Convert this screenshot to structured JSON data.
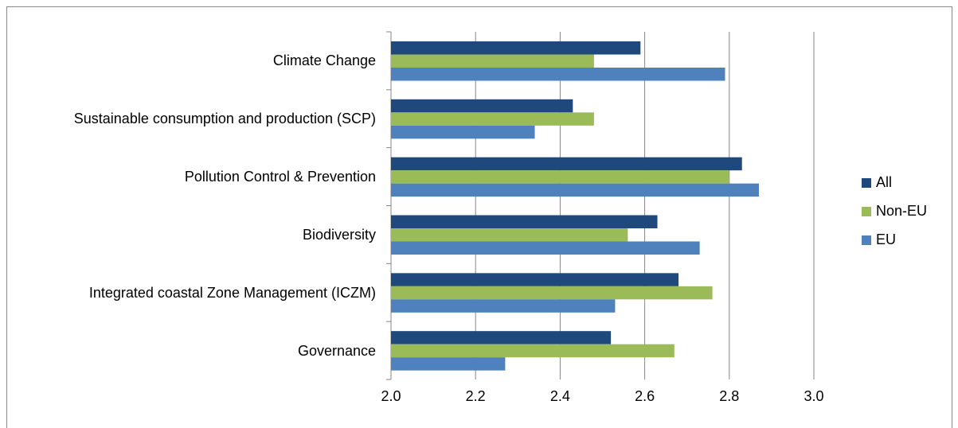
{
  "chart_data": {
    "type": "hbar",
    "categories": [
      "Climate Change ",
      "Sustainable consumption and production (SCP)",
      "Pollution Control & Prevention",
      "Biodiversity",
      "Integrated coastal Zone Management (ICZM)",
      "Governance "
    ],
    "series": [
      {
        "name": "All",
        "color": "#1f497d",
        "values": [
          2.59,
          2.43,
          2.83,
          2.63,
          2.68,
          2.52
        ]
      },
      {
        "name": "Non-EU",
        "color": "#9bbb59",
        "values": [
          2.48,
          2.48,
          2.8,
          2.56,
          2.76,
          2.67
        ]
      },
      {
        "name": "EU",
        "color": "#4f81bd",
        "values": [
          2.79,
          2.34,
          2.87,
          2.73,
          2.53,
          2.27
        ]
      }
    ],
    "xlim": [
      2,
      3
    ],
    "xticks": [
      {
        "value": 2,
        "label": "2.0"
      },
      2.2,
      2.4,
      2.6,
      2.8,
      {
        "value": 3,
        "label": "3.0"
      }
    ],
    "grid": true,
    "legend": "right"
  }
}
